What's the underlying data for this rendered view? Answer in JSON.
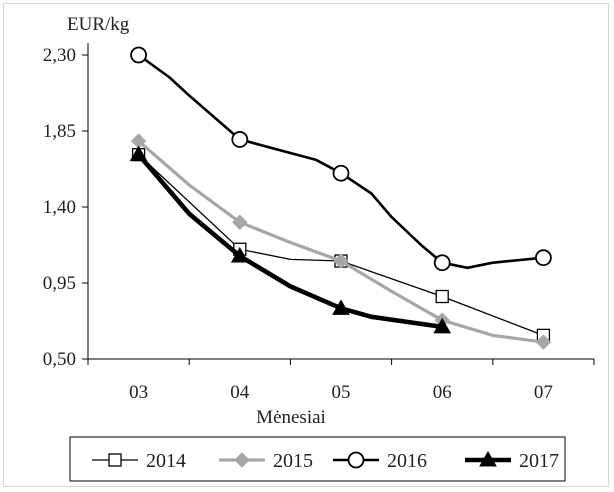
{
  "chart_data": {
    "type": "line",
    "ylabel": "EUR/kg",
    "xlabel": "Mėnesiai",
    "categories": [
      "03",
      "04",
      "05",
      "06",
      "07"
    ],
    "ylim": [
      0.5,
      2.3
    ],
    "yticks": [
      "2,30",
      "1,85",
      "1,40",
      "0,95",
      "0,50"
    ],
    "ytick_values": [
      2.3,
      1.85,
      1.4,
      0.95,
      0.5
    ],
    "grid": false,
    "legend_position": "bottom",
    "series": [
      {
        "name": "2014",
        "marker": "square-open",
        "color": "#000000",
        "x": [
          0,
          1,
          1.5,
          2,
          3,
          4
        ],
        "values": [
          1.71,
          1.15,
          1.09,
          1.08,
          0.87,
          0.64
        ],
        "marker_points": [
          0,
          1,
          3,
          4,
          5
        ]
      },
      {
        "name": "2015",
        "marker": "diamond",
        "color": "#a6a6a6",
        "x": [
          0,
          0.5,
          1,
          1.5,
          2,
          2.5,
          3,
          3.5,
          4
        ],
        "values": [
          1.79,
          1.53,
          1.31,
          1.19,
          1.08,
          0.9,
          0.73,
          0.64,
          0.6
        ],
        "marker_points": [
          0,
          2,
          4,
          6,
          8
        ]
      },
      {
        "name": "2016",
        "marker": "circle-open",
        "color": "#000000",
        "x": [
          0,
          0.3,
          0.5,
          1,
          1.5,
          1.75,
          2,
          2.3,
          2.5,
          2.8,
          3,
          3.25,
          3.5,
          4
        ],
        "values": [
          2.3,
          2.17,
          2.06,
          1.8,
          1.72,
          1.68,
          1.6,
          1.48,
          1.34,
          1.17,
          1.07,
          1.04,
          1.07,
          1.1
        ],
        "marker_points": [
          0,
          3,
          6,
          10,
          13
        ]
      },
      {
        "name": "2017",
        "marker": "triangle-filled",
        "color": "#000000",
        "x": [
          0,
          0.5,
          1,
          1.5,
          2,
          2.3,
          3
        ],
        "values": [
          1.71,
          1.36,
          1.11,
          0.93,
          0.8,
          0.75,
          0.69
        ],
        "marker_points": [
          0,
          2,
          4,
          6
        ]
      }
    ]
  }
}
